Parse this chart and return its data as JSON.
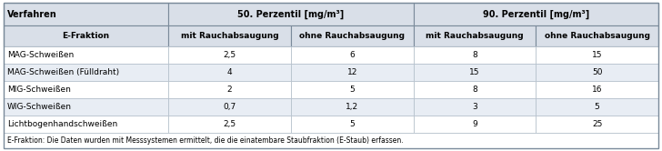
{
  "col_headers_row1": [
    "Verfahren",
    "50. Perzentil [mg/m³]",
    "90. Perzentil [mg/m³]"
  ],
  "col_headers_row2": [
    "E-Fraktion",
    "mit Rauchabsaugung",
    "ohne Rauchabsaugung",
    "mit Rauchabsaugung",
    "ohne Rauchabsaugung"
  ],
  "rows": [
    [
      "MAG-Schweißen",
      "2,5",
      "6",
      "8",
      "15"
    ],
    [
      "MAG-Schweißen (Fülldraht)",
      "4",
      "12",
      "15",
      "50"
    ],
    [
      "MIG-Schweißen",
      "2",
      "5",
      "8",
      "16"
    ],
    [
      "WIG-Schweißen",
      "0,7",
      "1,2",
      "3",
      "5"
    ],
    [
      "Lichtbogenhandschweißen",
      "2,5",
      "5",
      "9",
      "25"
    ]
  ],
  "footnote": "E-Fraktion: Die Daten wurden mit Messsystemen ermittelt, die die einatembare Staubfraktion (E-Staub) erfassen.",
  "bg_header": "#d9dfe8",
  "bg_row_odd": "#ffffff",
  "bg_row_even": "#e8edf4",
  "text_color_header": "#000000",
  "text_color_body": "#000000",
  "border_color_dark": "#7a8a9a",
  "border_color_light": "#b0bcc8",
  "fig_bg": "#ffffff",
  "outer_border": "#7a8a9a"
}
